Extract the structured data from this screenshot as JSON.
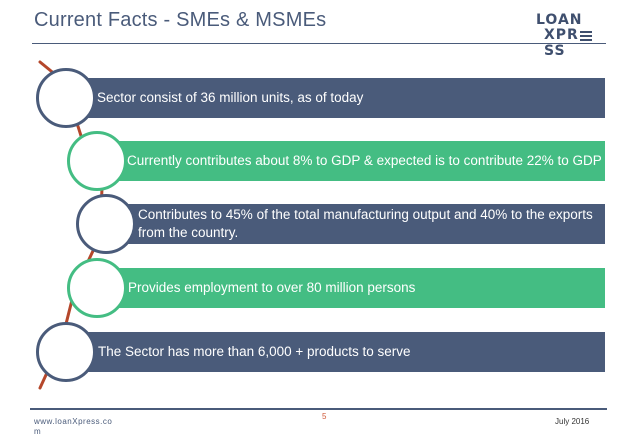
{
  "header": {
    "title": "Current Facts  - SMEs & MSMEs",
    "logo_line1": "LOAN",
    "logo_line2": "XPR SS"
  },
  "items": [
    {
      "text": "Sector consist of 36 million units, as of today",
      "style": "dark"
    },
    {
      "text": "Currently contributes about 8% to GDP & expected is to contribute 22% to GDP",
      "style": "green"
    },
    {
      "text": "Contributes to 45% of the total manufacturing output and 40% to the exports from the country.",
      "style": "dark"
    },
    {
      "text": "Provides employment to over 80 million persons",
      "style": "green"
    },
    {
      "text": "The Sector has more than 6,000 + products to serve",
      "style": "dark"
    }
  ],
  "footer": {
    "url": "www.loanXpress.com",
    "page": "5",
    "date": "July 2016"
  },
  "colors": {
    "dark": "#4a5b7a",
    "green": "#44bd83",
    "spine": "#b5472b"
  }
}
